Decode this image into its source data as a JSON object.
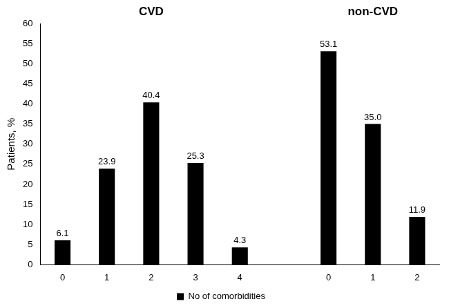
{
  "chart_data": {
    "type": "bar",
    "annotations": [
      "CVD",
      "non-CVD"
    ],
    "y_label": "Patients, %",
    "categories": [
      "0",
      "1",
      "2",
      "3",
      "4",
      null,
      "0",
      "1",
      "2"
    ],
    "series": [
      {
        "name": "No of comorbidities",
        "color": "#000000",
        "values": [
          6.1,
          23.9,
          40.4,
          25.3,
          4.3,
          null,
          53.1,
          35.0,
          11.9
        ],
        "value_labels": [
          "6.1",
          "23.9",
          "40.4",
          "25.3",
          "4.3",
          null,
          "53.1",
          "35.0",
          "11.9"
        ]
      }
    ],
    "ylim": [
      0,
      60
    ],
    "yticks": [
      0,
      5,
      10,
      15,
      20,
      25,
      30,
      35,
      40,
      45,
      50,
      55,
      60
    ],
    "grid": false,
    "legend": "bottom",
    "data_labels": true
  }
}
